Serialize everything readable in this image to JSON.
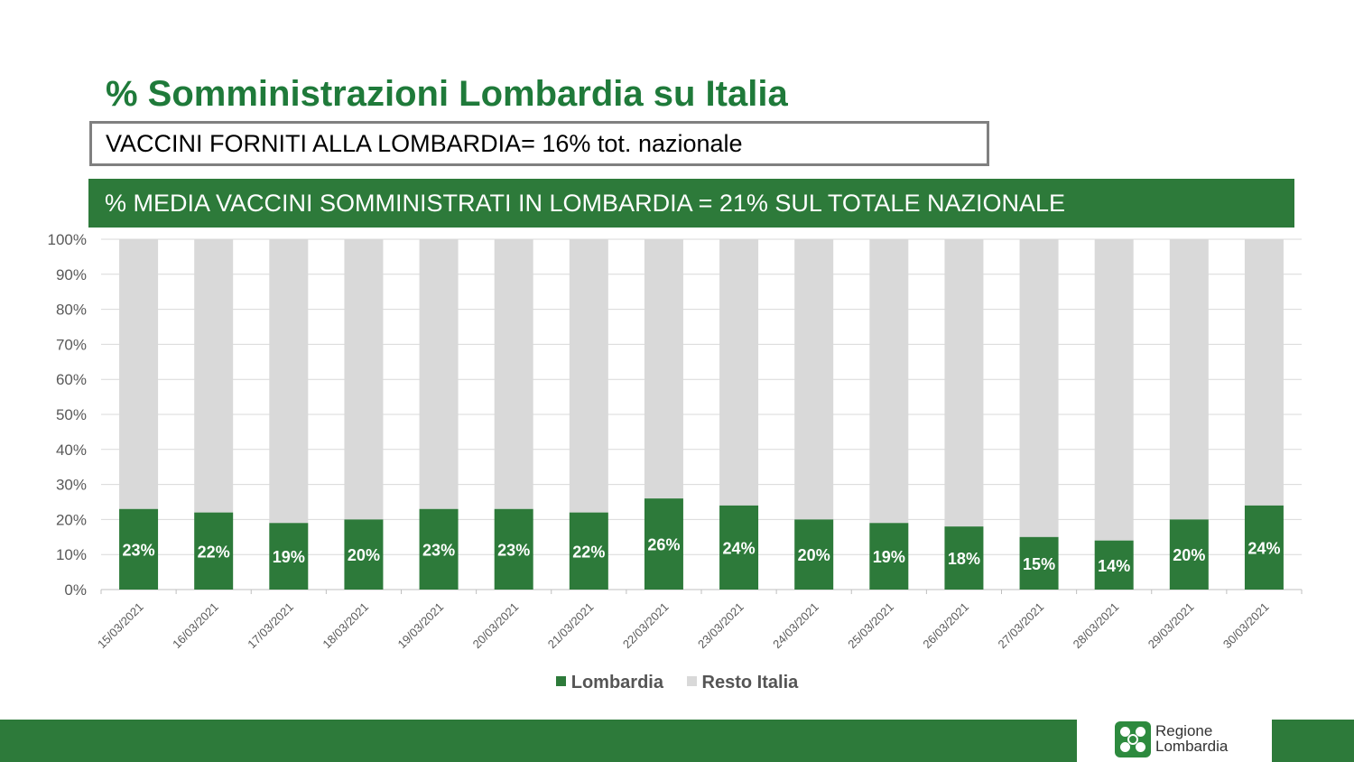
{
  "header": {
    "title": "% Somministrazioni Lombardia su Italia",
    "boxed_note": "VACCINI FORNITI ALLA LOMBARDIA= 16% tot. nazionale",
    "banner": "% MEDIA VACCINI SOMMINISTRATI IN LOMBARDIA = 21% SUL TOTALE NAZIONALE"
  },
  "colors": {
    "accent": "#2d7a3a",
    "lombardia": "#2d7a3a",
    "resto": "#d9d9d9",
    "grid": "#d9d9d9"
  },
  "chart_data": {
    "type": "bar",
    "stacked": true,
    "categories": [
      "15/03/2021",
      "16/03/2021",
      "17/03/2021",
      "18/03/2021",
      "19/03/2021",
      "20/03/2021",
      "21/03/2021",
      "22/03/2021",
      "23/03/2021",
      "24/03/2021",
      "25/03/2021",
      "26/03/2021",
      "27/03/2021",
      "28/03/2021",
      "29/03/2021",
      "30/03/2021"
    ],
    "series": [
      {
        "name": "Lombardia",
        "values": [
          23,
          22,
          19,
          20,
          23,
          23,
          22,
          26,
          24,
          20,
          19,
          18,
          15,
          14,
          20,
          24
        ],
        "color": "#2d7a3a"
      },
      {
        "name": "Resto Italia",
        "values": [
          77,
          78,
          81,
          80,
          77,
          77,
          78,
          74,
          76,
          80,
          81,
          82,
          85,
          86,
          80,
          76
        ],
        "color": "#d9d9d9"
      }
    ],
    "data_labels": [
      "23%",
      "22%",
      "19%",
      "20%",
      "23%",
      "23%",
      "22%",
      "26%",
      "24%",
      "20%",
      "19%",
      "18%",
      "15%",
      "14%",
      "20%",
      "24%"
    ],
    "yticks": [
      "0%",
      "10%",
      "20%",
      "30%",
      "40%",
      "50%",
      "60%",
      "70%",
      "80%",
      "90%",
      "100%"
    ],
    "ylim": [
      0,
      100
    ],
    "grid": true,
    "legend_position": "bottom"
  },
  "legend": [
    {
      "label": "Lombardia",
      "color": "#2d7a3a"
    },
    {
      "label": "Resto Italia",
      "color": "#d9d9d9"
    }
  ],
  "footer": {
    "logo_line1": "Regione",
    "logo_line2": "Lombardia"
  }
}
